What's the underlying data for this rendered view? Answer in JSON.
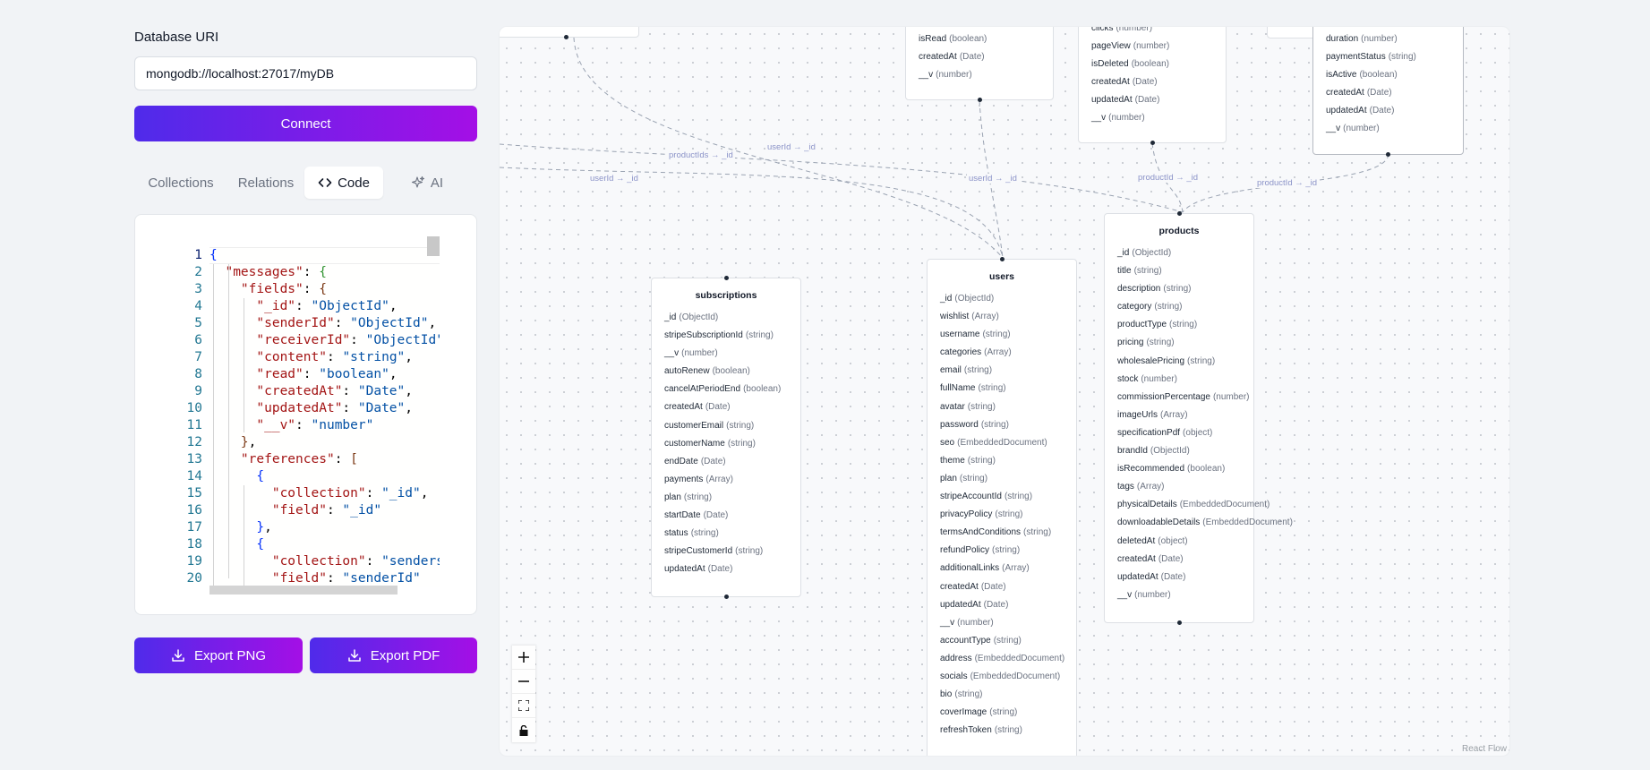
{
  "connection": {
    "label": "Database URI",
    "uri_value": "mongodb://localhost:27017/myDB",
    "connect_label": "Connect"
  },
  "tabs": [
    {
      "label": "Collections",
      "active": false
    },
    {
      "label": "Relations",
      "active": false
    },
    {
      "label": "Code",
      "active": true,
      "icon": "code-icon"
    },
    {
      "label": "AI",
      "active": false,
      "icon": "sparkles-icon"
    }
  ],
  "code_editor": {
    "line_numbers": [
      "1",
      "2",
      "3",
      "4",
      "5",
      "6",
      "7",
      "8",
      "9",
      "10",
      "11",
      "12",
      "13",
      "14",
      "15",
      "16",
      "17",
      "18",
      "19",
      "20"
    ],
    "current_line": "1"
  },
  "export": {
    "png_label": "Export PNG",
    "pdf_label": "Export PDF",
    "icon": "download-icon"
  },
  "canvas": {
    "attribution": "React Flow",
    "controls": [
      "zoom-in",
      "zoom-out",
      "fit-view",
      "lock"
    ]
  },
  "partial_nodes": {
    "notifications": [
      {
        "name": "isRead",
        "type": "(boolean)"
      },
      {
        "name": "createdAt",
        "type": "(Date)"
      },
      {
        "name": "__v",
        "type": "(number)"
      }
    ],
    "analytics": [
      {
        "name": "clicks",
        "type": "(number)"
      },
      {
        "name": "pageView",
        "type": "(number)"
      },
      {
        "name": "isDeleted",
        "type": "(boolean)"
      },
      {
        "name": "createdAt",
        "type": "(Date)"
      },
      {
        "name": "updatedAt",
        "type": "(Date)"
      },
      {
        "name": "__v",
        "type": "(number)"
      }
    ],
    "orders": [
      {
        "name": "duration",
        "type": "(number)"
      },
      {
        "name": "paymentStatus",
        "type": "(string)"
      },
      {
        "name": "isActive",
        "type": "(boolean)"
      },
      {
        "name": "createdAt",
        "type": "(Date)"
      },
      {
        "name": "updatedAt",
        "type": "(Date)"
      },
      {
        "name": "__v",
        "type": "(number)"
      }
    ]
  },
  "subscriptions": {
    "title": "subscriptions",
    "fields": [
      {
        "name": "_id",
        "type": "(ObjectId)"
      },
      {
        "name": "stripeSubscriptionId",
        "type": "(string)"
      },
      {
        "name": "__v",
        "type": "(number)"
      },
      {
        "name": "autoRenew",
        "type": "(boolean)"
      },
      {
        "name": "cancelAtPeriodEnd",
        "type": "(boolean)"
      },
      {
        "name": "createdAt",
        "type": "(Date)"
      },
      {
        "name": "customerEmail",
        "type": "(string)"
      },
      {
        "name": "customerName",
        "type": "(string)"
      },
      {
        "name": "endDate",
        "type": "(Date)"
      },
      {
        "name": "payments",
        "type": "(Array)"
      },
      {
        "name": "plan",
        "type": "(string)"
      },
      {
        "name": "startDate",
        "type": "(Date)"
      },
      {
        "name": "status",
        "type": "(string)"
      },
      {
        "name": "stripeCustomerId",
        "type": "(string)"
      },
      {
        "name": "updatedAt",
        "type": "(Date)"
      }
    ]
  },
  "users": {
    "title": "users",
    "fields": [
      {
        "name": "_id",
        "type": "(ObjectId)"
      },
      {
        "name": "wishlist",
        "type": "(Array)"
      },
      {
        "name": "username",
        "type": "(string)"
      },
      {
        "name": "categories",
        "type": "(Array)"
      },
      {
        "name": "email",
        "type": "(string)"
      },
      {
        "name": "fullName",
        "type": "(string)"
      },
      {
        "name": "avatar",
        "type": "(string)"
      },
      {
        "name": "password",
        "type": "(string)"
      },
      {
        "name": "seo",
        "type": "(EmbeddedDocument)"
      },
      {
        "name": "theme",
        "type": "(string)"
      },
      {
        "name": "plan",
        "type": "(string)"
      },
      {
        "name": "stripeAccountId",
        "type": "(string)"
      },
      {
        "name": "privacyPolicy",
        "type": "(string)"
      },
      {
        "name": "termsAndConditions",
        "type": "(string)"
      },
      {
        "name": "refundPolicy",
        "type": "(string)"
      },
      {
        "name": "additionalLinks",
        "type": "(Array)"
      },
      {
        "name": "createdAt",
        "type": "(Date)"
      },
      {
        "name": "updatedAt",
        "type": "(Date)"
      },
      {
        "name": "__v",
        "type": "(number)"
      },
      {
        "name": "accountType",
        "type": "(string)"
      },
      {
        "name": "address",
        "type": "(EmbeddedDocument)"
      },
      {
        "name": "socials",
        "type": "(EmbeddedDocument)"
      },
      {
        "name": "bio",
        "type": "(string)"
      },
      {
        "name": "coverImage",
        "type": "(string)"
      },
      {
        "name": "refreshToken",
        "type": "(string)"
      }
    ]
  },
  "products": {
    "title": "products",
    "fields": [
      {
        "name": "_id",
        "type": "(ObjectId)"
      },
      {
        "name": "title",
        "type": "(string)"
      },
      {
        "name": "description",
        "type": "(string)"
      },
      {
        "name": "category",
        "type": "(string)"
      },
      {
        "name": "productType",
        "type": "(string)"
      },
      {
        "name": "pricing",
        "type": "(string)"
      },
      {
        "name": "wholesalePricing",
        "type": "(string)"
      },
      {
        "name": "stock",
        "type": "(number)"
      },
      {
        "name": "commissionPercentage",
        "type": "(number)"
      },
      {
        "name": "imageUrls",
        "type": "(Array)"
      },
      {
        "name": "specificationPdf",
        "type": "(object)"
      },
      {
        "name": "brandId",
        "type": "(ObjectId)"
      },
      {
        "name": "isRecommended",
        "type": "(boolean)"
      },
      {
        "name": "tags",
        "type": "(Array)"
      },
      {
        "name": "physicalDetails",
        "type": "(EmbeddedDocument)"
      },
      {
        "name": "downloadableDetails",
        "type": "(EmbeddedDocument)"
      },
      {
        "name": "deletedAt",
        "type": "(object)"
      },
      {
        "name": "createdAt",
        "type": "(Date)"
      },
      {
        "name": "updatedAt",
        "type": "(Date)"
      },
      {
        "name": "__v",
        "type": "(number)"
      }
    ]
  },
  "edge_labels": {
    "e1": "userId → _id",
    "e2": "productIds → _id",
    "e3": "userId → _id",
    "e4": "userId → _id",
    "e5": "productId → _id",
    "e6": "productId → _id"
  }
}
